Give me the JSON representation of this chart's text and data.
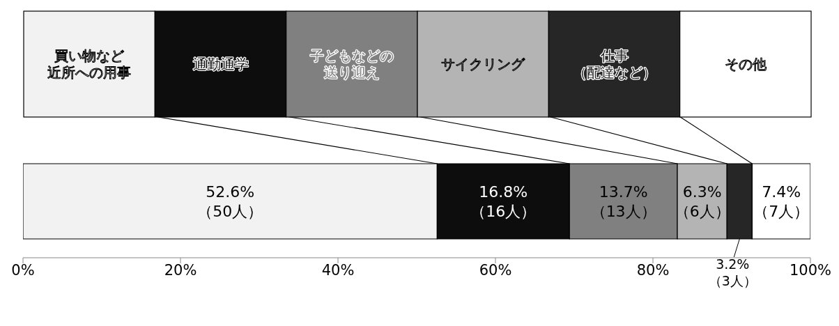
{
  "chart_data": {
    "type": "bar",
    "orientation": "horizontal",
    "stacked": true,
    "categories": [
      null
    ],
    "series": [
      {
        "name": "買い物など近所への用事",
        "color": "#f2f2f2",
        "values": [
          52.6
        ],
        "value_labels": [
          "52.6%\n（50人）"
        ]
      },
      {
        "name": "通勤通学",
        "color": "#0d0d0d",
        "values": [
          16.8
        ],
        "value_labels": [
          "16.8%\n（16人）"
        ]
      },
      {
        "name": "子どもなどの送り迎え",
        "color": "#808080",
        "values": [
          13.7
        ],
        "value_labels": [
          "13.7%\n（13人）"
        ]
      },
      {
        "name": "サイクリング",
        "color": "#b4b4b4",
        "values": [
          6.3
        ],
        "value_labels": [
          "6.3%\n（6人）"
        ]
      },
      {
        "name": "仕事（配達など）",
        "color": "#262626",
        "values": [
          3.2
        ],
        "value_labels": [
          "3.2%\n（3人）"
        ]
      },
      {
        "name": "その他",
        "color": "#ffffff",
        "values": [
          7.4
        ],
        "value_labels": [
          "7.4%\n（7人）"
        ]
      }
    ],
    "xlim": [
      0,
      100
    ],
    "xticks": [
      {
        "value": 0,
        "label": "0%"
      },
      {
        "value": 20,
        "label": "20%"
      },
      {
        "value": 40,
        "label": "40%"
      },
      {
        "value": 60,
        "label": "60%"
      },
      {
        "value": 80,
        "label": "80%"
      },
      {
        "value": 100,
        "label": "100%"
      }
    ],
    "legend": "top",
    "grid": false
  }
}
